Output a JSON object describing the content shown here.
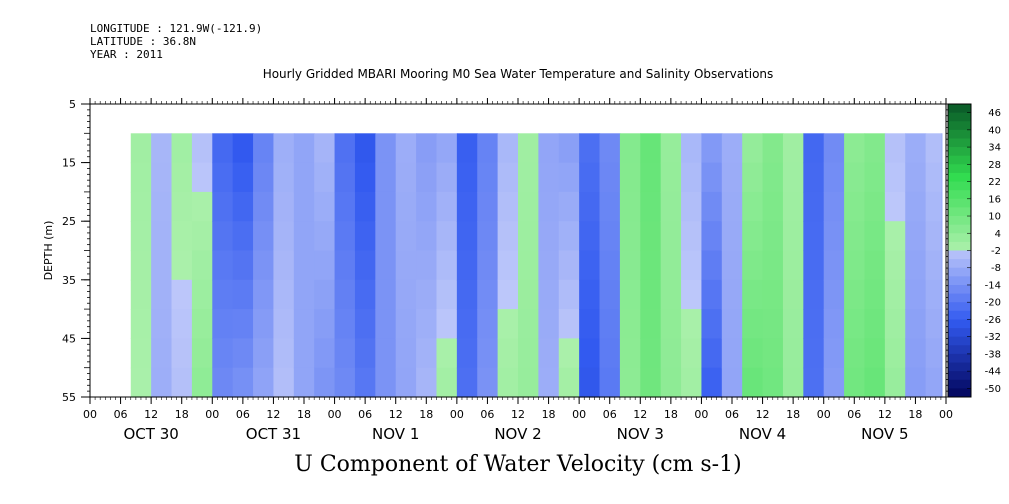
{
  "header": {
    "longitude": "LONGITUDE : 121.9W(-121.9)",
    "latitude": "LATITUDE : 36.8N",
    "year": "YEAR : 2011"
  },
  "chart_data": {
    "type": "heatmap",
    "title": "Hourly Gridded MBARI Mooring M0 Sea Water Temperature and Salinity Observations",
    "xlabel": "U Component of Water Velocity (cm s-1)",
    "ylabel": "DEPTH (m)",
    "x_axis": {
      "hour_ticks": [
        "00",
        "06",
        "12",
        "18",
        "00",
        "06",
        "12",
        "18",
        "00",
        "06",
        "12",
        "18",
        "00",
        "06",
        "12",
        "18",
        "00",
        "06",
        "12",
        "18",
        "00",
        "06",
        "12",
        "18",
        "00",
        "06",
        "12",
        "18",
        "00"
      ],
      "day_labels": [
        "OCT 30",
        "OCT 31",
        "NOV  1",
        "NOV  2",
        "NOV  3",
        "NOV  4",
        "NOV  5"
      ],
      "range_hours": [
        0,
        168
      ]
    },
    "y_axis": {
      "ticks": [
        "5",
        "15",
        "25",
        "35",
        "45",
        "55"
      ],
      "range": [
        5,
        55
      ],
      "inverted": true
    },
    "data_extent": {
      "start_hour": 8,
      "end_hour": 167,
      "depth_range": [
        10,
        55
      ]
    },
    "colorbar": {
      "labels": [
        "46",
        "40",
        "34",
        "28",
        "22",
        "16",
        "10",
        "4",
        "-2",
        "-8",
        "-14",
        "-20",
        "-26",
        "-32",
        "-38",
        "-44",
        "-50"
      ],
      "range": [
        -50,
        50
      ]
    },
    "velocity_columns": [
      {
        "hour": 8,
        "surface": 2,
        "bottom": 0
      },
      {
        "hour": 12,
        "surface": -4,
        "bottom": -6
      },
      {
        "hour": 16,
        "surface": 2,
        "bottom": -2
      },
      {
        "hour": 20,
        "surface": -2,
        "bottom": 6
      },
      {
        "hour": 24,
        "surface": -22,
        "bottom": -14
      },
      {
        "hour": 28,
        "surface": -26,
        "bottom": -12
      },
      {
        "hour": 32,
        "surface": -16,
        "bottom": -8
      },
      {
        "hour": 36,
        "surface": -6,
        "bottom": -2
      },
      {
        "hour": 40,
        "surface": -8,
        "bottom": -8
      },
      {
        "hour": 44,
        "surface": -4,
        "bottom": -12
      },
      {
        "hour": 48,
        "surface": -20,
        "bottom": -14
      },
      {
        "hour": 52,
        "surface": -26,
        "bottom": -18
      },
      {
        "hour": 56,
        "surface": -12,
        "bottom": -12
      },
      {
        "hour": 60,
        "surface": -6,
        "bottom": -8
      },
      {
        "hour": 64,
        "surface": -10,
        "bottom": -4
      },
      {
        "hour": 68,
        "surface": -8,
        "bottom": 2
      },
      {
        "hour": 72,
        "surface": -24,
        "bottom": -20
      },
      {
        "hour": 76,
        "surface": -16,
        "bottom": -12
      },
      {
        "hour": 80,
        "surface": -4,
        "bottom": 2
      },
      {
        "hour": 84,
        "surface": 2,
        "bottom": 4
      },
      {
        "hour": 88,
        "surface": -8,
        "bottom": -6
      },
      {
        "hour": 92,
        "surface": -10,
        "bottom": 2
      },
      {
        "hour": 96,
        "surface": -20,
        "bottom": -26
      },
      {
        "hour": 100,
        "surface": -14,
        "bottom": -18
      },
      {
        "hour": 104,
        "surface": 8,
        "bottom": 6
      },
      {
        "hour": 108,
        "surface": 14,
        "bottom": 12
      },
      {
        "hour": 112,
        "surface": 4,
        "bottom": 6
      },
      {
        "hour": 116,
        "surface": -4,
        "bottom": 2
      },
      {
        "hour": 120,
        "surface": -10,
        "bottom": -24
      },
      {
        "hour": 124,
        "surface": -6,
        "bottom": -8
      },
      {
        "hour": 128,
        "surface": 4,
        "bottom": 14
      },
      {
        "hour": 132,
        "surface": 8,
        "bottom": 12
      },
      {
        "hour": 136,
        "surface": 2,
        "bottom": 4
      },
      {
        "hour": 140,
        "surface": -22,
        "bottom": -20
      },
      {
        "hour": 144,
        "surface": -14,
        "bottom": -10
      },
      {
        "hour": 148,
        "surface": 6,
        "bottom": 12
      },
      {
        "hour": 152,
        "surface": 8,
        "bottom": 14
      },
      {
        "hour": 156,
        "surface": -2,
        "bottom": 4
      },
      {
        "hour": 160,
        "surface": -6,
        "bottom": -10
      },
      {
        "hour": 164,
        "surface": -2,
        "bottom": -8
      },
      {
        "hour": 167,
        "surface": -4,
        "bottom": -10
      }
    ]
  }
}
